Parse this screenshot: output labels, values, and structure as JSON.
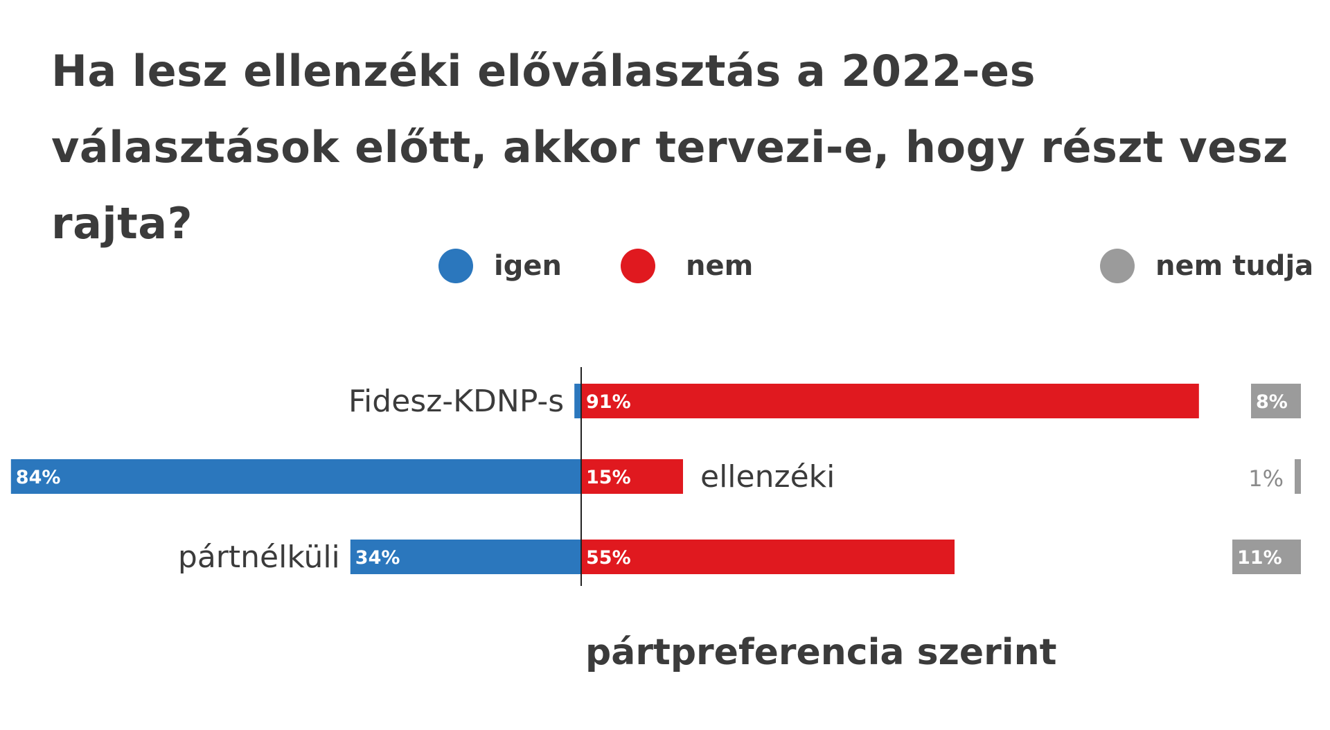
{
  "title": "Ha lesz ellenzéki előválasztás a 2022-es választások előtt, akkor tervezi-e, hogy részt vesz rajta?",
  "subtitle": "pártpreferencia szerint",
  "legend": [
    {
      "label": "igen",
      "color": "#2b77bd"
    },
    {
      "label": "nem",
      "color": "#e0191f"
    },
    {
      "label": "nem tudja",
      "color": "#9b9b9b"
    }
  ],
  "chart_data": {
    "type": "bar",
    "orientation": "horizontal-diverging",
    "categories": [
      "Fidesz-KDNP-s",
      "ellenzéki",
      "pártnélküli"
    ],
    "series": [
      {
        "name": "igen",
        "values": [
          1,
          84,
          34
        ],
        "labels": [
          "",
          "84%",
          "34%"
        ],
        "color": "#2b77bd"
      },
      {
        "name": "nem",
        "values": [
          91,
          15,
          55
        ],
        "labels": [
          "91%",
          "15%",
          "55%"
        ],
        "color": "#e0191f"
      },
      {
        "name": "nem tudja",
        "values": [
          8,
          1,
          11
        ],
        "labels": [
          "8%",
          "1%",
          "11%"
        ],
        "color": "#9b9b9b"
      }
    ],
    "title": "Ha lesz ellenzéki előválasztás a 2022-es választások előtt, akkor tervezi-e, hogy részt vesz rajta?",
    "subtitle": "pártpreferencia szerint",
    "legend_position": "top-right"
  }
}
